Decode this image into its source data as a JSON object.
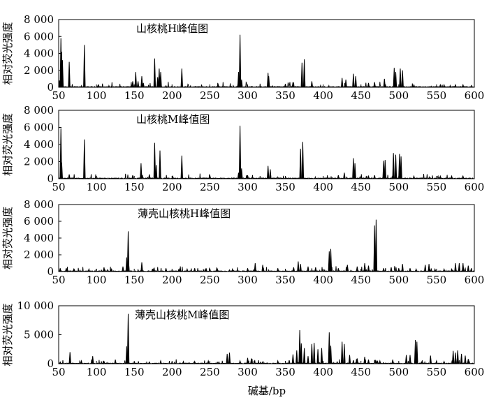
{
  "x_axis_label": "碱基/bp",
  "chart_data": [
    {
      "type": "line",
      "title": "山核桃H峰值图",
      "ylabel": "相对荧光强度",
      "xlim": [
        50,
        600
      ],
      "ylim": [
        0,
        8000
      ],
      "xticks": [
        "50",
        "100",
        "150",
        "200",
        "250",
        "300",
        "350",
        "400",
        "450",
        "500",
        "550",
        "600"
      ],
      "yticks": [
        "0",
        "2 000",
        "4 000",
        "6 000",
        "8 000"
      ],
      "peaks": [
        [
          51,
          800
        ],
        [
          53,
          5800
        ],
        [
          54,
          4200
        ],
        [
          55,
          3200
        ],
        [
          64,
          3000
        ],
        [
          84,
          5000
        ],
        [
          148,
          700
        ],
        [
          152,
          1800
        ],
        [
          155,
          700
        ],
        [
          160,
          1300
        ],
        [
          162,
          500
        ],
        [
          177,
          3400
        ],
        [
          181,
          1200
        ],
        [
          183,
          2200
        ],
        [
          185,
          1800
        ],
        [
          213,
          2200
        ],
        [
          261,
          350
        ],
        [
          288,
          1800
        ],
        [
          290,
          6200
        ],
        [
          292,
          900
        ],
        [
          327,
          1700
        ],
        [
          328,
          1300
        ],
        [
          350,
          400
        ],
        [
          360,
          600
        ],
        [
          372,
          2900
        ],
        [
          375,
          3300
        ],
        [
          385,
          700
        ],
        [
          425,
          1100
        ],
        [
          430,
          900
        ],
        [
          440,
          1600
        ],
        [
          443,
          1300
        ],
        [
          460,
          500
        ],
        [
          468,
          600
        ],
        [
          481,
          1000
        ],
        [
          494,
          2300
        ],
        [
          496,
          1800
        ],
        [
          502,
          2200
        ],
        [
          505,
          2000
        ],
        [
          520,
          300
        ],
        [
          555,
          300
        ],
        [
          560,
          300
        ],
        [
          575,
          300
        ],
        [
          585,
          300
        ]
      ]
    },
    {
      "type": "line",
      "title": "山核桃M峰值图",
      "ylabel": "相对荧光强度",
      "xlim": [
        50,
        600
      ],
      "ylim": [
        0,
        8000
      ],
      "xticks": [
        "50",
        "100",
        "150",
        "200",
        "250",
        "300",
        "350",
        "400",
        "450",
        "500",
        "550",
        "600"
      ],
      "yticks": [
        "0",
        "2 000",
        "4 000",
        "6 000",
        "8 000"
      ],
      "peaks": [
        [
          53,
          5900
        ],
        [
          54,
          1900
        ],
        [
          64,
          500
        ],
        [
          84,
          4600
        ],
        [
          148,
          400
        ],
        [
          159,
          1800
        ],
        [
          170,
          500
        ],
        [
          177,
          4200
        ],
        [
          179,
          1600
        ],
        [
          184,
          3300
        ],
        [
          213,
          2700
        ],
        [
          250,
          400
        ],
        [
          288,
          700
        ],
        [
          290,
          6200
        ],
        [
          292,
          1200
        ],
        [
          300,
          400
        ],
        [
          327,
          1500
        ],
        [
          330,
          1100
        ],
        [
          370,
          3500
        ],
        [
          373,
          4300
        ],
        [
          420,
          400
        ],
        [
          428,
          700
        ],
        [
          440,
          2400
        ],
        [
          442,
          1800
        ],
        [
          460,
          300
        ],
        [
          468,
          400
        ],
        [
          480,
          2100
        ],
        [
          482,
          2200
        ],
        [
          493,
          3000
        ],
        [
          496,
          2800
        ],
        [
          501,
          2900
        ],
        [
          503,
          2600
        ],
        [
          520,
          300
        ],
        [
          555,
          300
        ],
        [
          570,
          300
        ],
        [
          585,
          300
        ]
      ]
    },
    {
      "type": "line",
      "title": "薄壳山核桃H峰值图",
      "ylabel": "相对荧光强度",
      "xlim": [
        50,
        600
      ],
      "ylim": [
        0,
        8000
      ],
      "xticks": [
        "50",
        "100",
        "150",
        "200",
        "250",
        "300",
        "350",
        "400",
        "450",
        "500",
        "550",
        "600"
      ],
      "yticks": [
        "0",
        "2 000",
        "4 000",
        "6 000",
        "8 000"
      ],
      "peaks": [
        [
          52,
          400
        ],
        [
          60,
          400
        ],
        [
          70,
          300
        ],
        [
          90,
          300
        ],
        [
          110,
          500
        ],
        [
          120,
          300
        ],
        [
          135,
          600
        ],
        [
          140,
          1700
        ],
        [
          142,
          4800
        ],
        [
          160,
          1100
        ],
        [
          175,
          300
        ],
        [
          192,
          400
        ],
        [
          210,
          300
        ],
        [
          220,
          300
        ],
        [
          230,
          400
        ],
        [
          245,
          400
        ],
        [
          260,
          300
        ],
        [
          280,
          300
        ],
        [
          300,
          400
        ],
        [
          310,
          1000
        ],
        [
          320,
          800
        ],
        [
          340,
          400
        ],
        [
          361,
          500
        ],
        [
          367,
          1200
        ],
        [
          370,
          900
        ],
        [
          380,
          600
        ],
        [
          390,
          500
        ],
        [
          408,
          2400
        ],
        [
          410,
          2700
        ],
        [
          420,
          400
        ],
        [
          432,
          800
        ],
        [
          445,
          600
        ],
        [
          455,
          1000
        ],
        [
          460,
          700
        ],
        [
          468,
          5500
        ],
        [
          470,
          6200
        ],
        [
          480,
          400
        ],
        [
          490,
          500
        ],
        [
          500,
          400
        ],
        [
          505,
          900
        ],
        [
          515,
          400
        ],
        [
          523,
          300
        ],
        [
          535,
          800
        ],
        [
          540,
          900
        ],
        [
          548,
          300
        ],
        [
          560,
          300
        ],
        [
          570,
          300
        ],
        [
          575,
          1000
        ],
        [
          580,
          1000
        ],
        [
          585,
          1000
        ],
        [
          592,
          700
        ],
        [
          596,
          400
        ]
      ]
    },
    {
      "type": "line",
      "title": "薄壳山核桃M峰值图",
      "ylabel": "相对荧光强度",
      "xlim": [
        50,
        600
      ],
      "ylim": [
        0,
        10000
      ],
      "xticks": [
        "50",
        "100",
        "150",
        "200",
        "250",
        "300",
        "350",
        "400",
        "450",
        "500",
        "550",
        "600"
      ],
      "yticks": [
        "0",
        "5 000",
        "10 000"
      ],
      "peaks": [
        [
          52,
          300
        ],
        [
          65,
          2000
        ],
        [
          80,
          500
        ],
        [
          95,
          1300
        ],
        [
          110,
          400
        ],
        [
          125,
          700
        ],
        [
          140,
          3000
        ],
        [
          142,
          8600
        ],
        [
          150,
          300
        ],
        [
          170,
          300
        ],
        [
          185,
          500
        ],
        [
          200,
          300
        ],
        [
          215,
          400
        ],
        [
          230,
          400
        ],
        [
          248,
          500
        ],
        [
          262,
          300
        ],
        [
          273,
          1700
        ],
        [
          276,
          1900
        ],
        [
          290,
          500
        ],
        [
          300,
          1000
        ],
        [
          305,
          900
        ],
        [
          320,
          300
        ],
        [
          340,
          500
        ],
        [
          355,
          600
        ],
        [
          360,
          1600
        ],
        [
          365,
          2300
        ],
        [
          369,
          5800
        ],
        [
          371,
          3500
        ],
        [
          375,
          2700
        ],
        [
          380,
          1300
        ],
        [
          385,
          3400
        ],
        [
          388,
          3600
        ],
        [
          393,
          2500
        ],
        [
          398,
          2700
        ],
        [
          408,
          5400
        ],
        [
          410,
          3100
        ],
        [
          425,
          3800
        ],
        [
          428,
          3400
        ],
        [
          435,
          1500
        ],
        [
          440,
          600
        ],
        [
          445,
          900
        ],
        [
          455,
          1200
        ],
        [
          460,
          700
        ],
        [
          475,
          500
        ],
        [
          492,
          700
        ],
        [
          510,
          1500
        ],
        [
          515,
          1500
        ],
        [
          522,
          4100
        ],
        [
          524,
          3800
        ],
        [
          530,
          300
        ],
        [
          542,
          1400
        ],
        [
          550,
          500
        ],
        [
          560,
          400
        ],
        [
          572,
          2200
        ],
        [
          575,
          1900
        ],
        [
          578,
          2300
        ],
        [
          583,
          1700
        ],
        [
          588,
          1400
        ],
        [
          592,
          800
        ]
      ]
    }
  ]
}
